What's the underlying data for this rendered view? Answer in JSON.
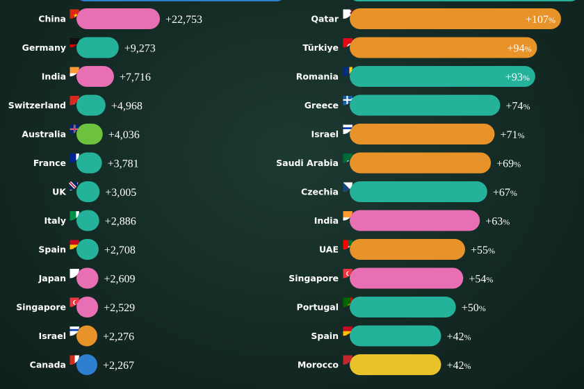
{
  "colors": {
    "pink": "#e86fb4",
    "teal": "#24b39a",
    "green": "#6cc23e",
    "orange": "#e8922a",
    "yellow": "#e8c22a",
    "blue": "#2f7fd1"
  },
  "chart_data": [
    {
      "type": "bar",
      "orientation": "horizontal",
      "value_format": "absolute change",
      "categories": [
        "China",
        "Germany",
        "India",
        "Switzerland",
        "Australia",
        "France",
        "UK",
        "Italy",
        "Spain",
        "Japan",
        "Singapore",
        "Israel",
        "Canada"
      ],
      "values": [
        22753,
        9273,
        7716,
        4968,
        4036,
        3781,
        3005,
        2886,
        2708,
        2609,
        2529,
        2276,
        2267
      ],
      "value_labels": [
        "+22,753",
        "+9,273",
        "+7,716",
        "+4,968",
        "+4,036",
        "+3,781",
        "+3,005",
        "+2,886",
        "+2,708",
        "+2,609",
        "+2,529",
        "+2,276",
        "+2,267"
      ],
      "bar_colors": [
        "pink",
        "teal",
        "pink",
        "teal",
        "green",
        "teal",
        "teal",
        "teal",
        "teal",
        "pink",
        "pink",
        "orange",
        "blue"
      ],
      "flags": [
        "flag-china",
        "flag-germany",
        "flag-india",
        "flag-switzerland",
        "flag-australia",
        "flag-france",
        "flag-uk",
        "flag-italy",
        "flag-spain",
        "flag-japan",
        "flag-singapore",
        "flag-israel",
        "flag-canada"
      ]
    },
    {
      "type": "bar",
      "orientation": "horizontal",
      "value_format": "percent change",
      "categories": [
        "Qatar",
        "Türkiye",
        "Romania",
        "Greece",
        "Israel",
        "Saudi Arabia",
        "Czechia",
        "India",
        "UAE",
        "Singapore",
        "Portugal",
        "Spain",
        "Morocco"
      ],
      "values": [
        107,
        94,
        93,
        74,
        71,
        69,
        67,
        63,
        55,
        54,
        50,
        42,
        42
      ],
      "value_labels": [
        "+107%",
        "+94%",
        "+93%",
        "+74%",
        "+71%",
        "+69%",
        "+67%",
        "+63%",
        "+55%",
        "+54%",
        "+50%",
        "+42%",
        "+42%"
      ],
      "bar_colors": [
        "orange",
        "orange",
        "teal",
        "teal",
        "orange",
        "orange",
        "teal",
        "pink",
        "orange",
        "pink",
        "teal",
        "teal",
        "yellow"
      ],
      "flags": [
        "flag-qatar",
        "flag-turkiye",
        "flag-romania",
        "flag-greece",
        "flag-israel",
        "flag-saudi-arabia",
        "flag-czechia",
        "flag-india",
        "flag-uae",
        "flag-singapore",
        "flag-portugal",
        "flag-spain",
        "flag-morocco"
      ]
    }
  ]
}
